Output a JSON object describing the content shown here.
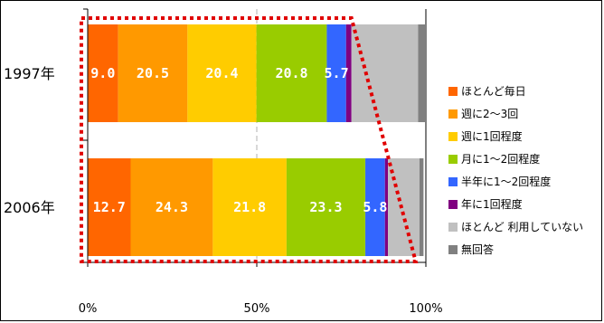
{
  "chart_data": {
    "type": "bar",
    "orientation": "horizontal",
    "stacked": true,
    "percent": true,
    "categories": [
      "1997年",
      "2006年"
    ],
    "xlim": [
      0,
      100
    ],
    "x_ticks": [
      "0%",
      "50%",
      "100%"
    ],
    "series": [
      {
        "name": "ほとんど毎日",
        "values": [
          9.0,
          12.7
        ],
        "labels": [
          "9.0",
          "12.7"
        ],
        "color": "#ff6600"
      },
      {
        "name": "週に2〜3回",
        "values": [
          20.5,
          24.3
        ],
        "labels": [
          "20.5",
          "24.3"
        ],
        "color": "#ff9900"
      },
      {
        "name": "週に1回程度",
        "values": [
          20.4,
          21.8
        ],
        "labels": [
          "20.4",
          "21.8"
        ],
        "color": "#ffcc00"
      },
      {
        "name": "月に1〜2回程度",
        "values": [
          20.8,
          23.3
        ],
        "labels": [
          "20.8",
          "23.3"
        ],
        "color": "#99cc00"
      },
      {
        "name": "半年に1〜2回程度",
        "values": [
          5.7,
          5.8
        ],
        "labels": [
          "5.7",
          "5.8"
        ],
        "color": "#3366ff"
      },
      {
        "name": "年に1回程度",
        "values": [
          1.6,
          0.9
        ],
        "labels": [
          "",
          ""
        ],
        "color": "#800080"
      },
      {
        "name": "ほとんど 利用していない",
        "values": [
          19.7,
          9.3
        ],
        "labels": [
          "",
          ""
        ],
        "color": "#c0c0c0"
      },
      {
        "name": "無回答",
        "values": [
          2.3,
          1.2
        ],
        "labels": [
          "",
          ""
        ],
        "color": "#808080"
      }
    ],
    "legend_position": "right",
    "highlight": {
      "style": "dotted",
      "color": "#e00000"
    }
  }
}
